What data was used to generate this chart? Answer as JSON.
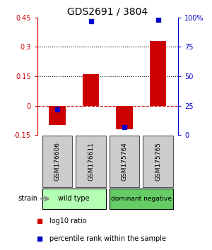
{
  "title": "GDS2691 / 3804",
  "samples": [
    "GSM176606",
    "GSM176611",
    "GSM175764",
    "GSM175765"
  ],
  "log10_ratio": [
    -0.1,
    0.16,
    -0.12,
    0.33
  ],
  "percentile_rank_pct": [
    22,
    97,
    7,
    98
  ],
  "groups": [
    {
      "label": "wild type",
      "samples": [
        0,
        1
      ],
      "color": "#aaffaa"
    },
    {
      "label": "dominant negative",
      "samples": [
        2,
        3
      ],
      "color": "#55cc55"
    }
  ],
  "ylim_left": [
    -0.15,
    0.45
  ],
  "ylim_right": [
    0,
    100
  ],
  "yticks_left": [
    -0.15,
    0,
    0.15,
    0.3,
    0.45
  ],
  "yticks_right": [
    0,
    25,
    50,
    75,
    100
  ],
  "hlines": [
    0.3,
    0.15
  ],
  "bar_color": "#cc0000",
  "dot_color": "#0000cc",
  "zero_line_color": "#cc0000",
  "grid_line_color": "#000000",
  "left_tick_color": "#cc0000",
  "right_tick_color": "#0000cc",
  "bar_width": 0.5,
  "legend_red_label": "log10 ratio",
  "legend_blue_label": "percentile rank within the sample",
  "strain_label": "strain",
  "sample_box_color": "#cccccc",
  "sample_box_edge": "#555555",
  "group1_color": "#b3ffb3",
  "group2_color": "#66cc66"
}
